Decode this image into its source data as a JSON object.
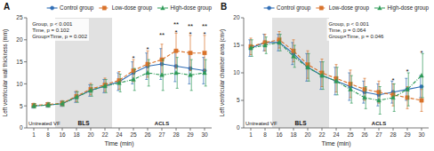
{
  "chart_data": [
    {
      "type": "line",
      "title": "A",
      "x_label": "Time (min)",
      "y_label": "Left ventricular wall thickness (mm)",
      "categories": [
        "1",
        "8",
        "16",
        "18",
        "20",
        "22",
        "24",
        "25",
        "26",
        "27",
        "28",
        "29",
        "30"
      ],
      "ylim": [
        0,
        25
      ],
      "yticks": [
        0,
        5,
        10,
        15,
        20,
        25
      ],
      "grid": false,
      "legend": "top",
      "series": [
        {
          "name": "Control group",
          "marker": "circle",
          "line_style": "solid",
          "values": [
            5.0,
            5.2,
            5.5,
            7.0,
            8.5,
            9.5,
            10.5,
            12.5,
            14.0,
            14.5,
            14.0,
            13.5,
            13.0
          ],
          "sd": [
            0.5,
            0.5,
            0.6,
            1.2,
            1.3,
            1.5,
            2.0,
            2.5,
            3.0,
            3.5,
            3.5,
            3.5,
            3.0
          ]
        },
        {
          "name": "Low-dose group",
          "marker": "square",
          "line_style": "dashed",
          "values": [
            5.1,
            5.3,
            5.6,
            7.2,
            8.8,
            9.8,
            10.8,
            13.0,
            14.5,
            15.5,
            17.5,
            17.0,
            17.0
          ],
          "sd": [
            0.5,
            0.5,
            0.6,
            1.2,
            1.3,
            1.5,
            2.0,
            2.5,
            3.0,
            3.5,
            4.0,
            4.0,
            4.0
          ]
        },
        {
          "name": "High-dose group",
          "marker": "triangle",
          "line_style": "dashdot",
          "values": [
            5.0,
            5.2,
            5.5,
            7.0,
            8.5,
            9.5,
            10.2,
            11.0,
            12.5,
            12.0,
            12.5,
            12.0,
            12.5
          ],
          "sd": [
            0.5,
            0.5,
            0.6,
            1.2,
            1.3,
            1.5,
            2.0,
            2.5,
            3.0,
            3.5,
            3.5,
            3.5,
            3.0
          ]
        }
      ],
      "regions": [
        {
          "label": "Untreated VF",
          "from": "1",
          "to": "8"
        },
        {
          "label": "BLS",
          "from": "16",
          "to": "22",
          "color": "#c8c8c8"
        },
        {
          "label": "ACLS",
          "from": "24",
          "to": "30"
        }
      ],
      "annotations": [
        {
          "text": "Group, p < 0.001"
        },
        {
          "text": "Time, p = 0.102"
        },
        {
          "text": "Group×Time, p = 0.002"
        },
        {
          "text": "*",
          "x": "25"
        },
        {
          "text": "*",
          "x": "26"
        },
        {
          "text": "*",
          "x": "28"
        },
        {
          "text": "*",
          "x": "29"
        },
        {
          "text": "*",
          "x": "30"
        },
        {
          "text": "**",
          "x": "27"
        },
        {
          "text": "**",
          "x": "28"
        },
        {
          "text": "**",
          "x": "29"
        },
        {
          "text": "**",
          "x": "30"
        }
      ]
    },
    {
      "type": "line",
      "title": "B",
      "x_label": "Time (min)",
      "y_label": "Left ventricular chamber area (cm²)",
      "categories": [
        "1",
        "8",
        "16",
        "18",
        "20",
        "22",
        "24",
        "25",
        "26",
        "27",
        "28",
        "29",
        "30"
      ],
      "ylim": [
        0,
        20
      ],
      "yticks": [
        0,
        5,
        10,
        15,
        20
      ],
      "grid": false,
      "legend": "top",
      "series": [
        {
          "name": "Control group",
          "marker": "circle",
          "line_style": "solid",
          "values": [
            14.5,
            15.5,
            15.5,
            13.5,
            11.0,
            9.5,
            8.5,
            7.5,
            6.5,
            6.0,
            6.5,
            7.0,
            7.5
          ],
          "sd": [
            1.5,
            1.5,
            1.5,
            2.0,
            2.5,
            2.5,
            2.5,
            2.5,
            2.0,
            2.0,
            2.0,
            2.0,
            2.0
          ]
        },
        {
          "name": "Low-dose group",
          "marker": "square",
          "line_style": "dashed",
          "values": [
            14.8,
            15.5,
            16.0,
            14.0,
            11.5,
            10.0,
            9.0,
            8.0,
            7.0,
            6.5,
            6.0,
            5.5,
            5.0
          ],
          "sd": [
            1.5,
            1.5,
            1.5,
            2.0,
            2.5,
            2.5,
            2.5,
            2.5,
            2.0,
            2.0,
            2.0,
            2.0,
            2.0
          ]
        },
        {
          "name": "High-dose group",
          "marker": "triangle",
          "line_style": "dashdot",
          "values": [
            14.5,
            15.0,
            15.5,
            13.0,
            11.0,
            9.5,
            8.5,
            7.0,
            5.5,
            5.0,
            5.5,
            7.0,
            9.5
          ],
          "sd": [
            1.5,
            1.5,
            1.5,
            2.0,
            2.5,
            2.5,
            2.5,
            2.5,
            2.0,
            2.5,
            2.5,
            3.0,
            4.0
          ]
        }
      ],
      "regions": [
        {
          "label": "Untreated VF",
          "from": "1",
          "to": "8"
        },
        {
          "label": "BLS",
          "from": "16",
          "to": "22",
          "color": "#c8c8c8"
        },
        {
          "label": "ACLS",
          "from": "24",
          "to": "30"
        }
      ],
      "annotations": [
        {
          "text": "Group, p < 0.001"
        },
        {
          "text": "Time, p = 0.064"
        },
        {
          "text": "Group×Time, p = 0.046"
        },
        {
          "text": "*",
          "x": "28"
        },
        {
          "text": "*",
          "x": "29"
        },
        {
          "text": "*",
          "x": "30"
        }
      ]
    }
  ]
}
